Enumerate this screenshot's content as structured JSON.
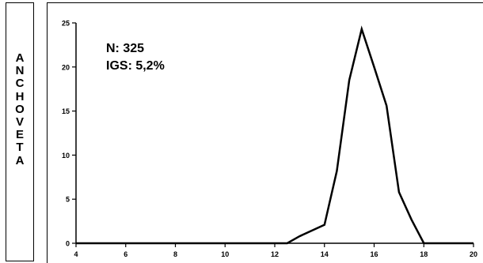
{
  "side_label": {
    "letters": [
      "A",
      "N",
      "C",
      "H",
      "O",
      "V",
      "E",
      "T",
      "A"
    ]
  },
  "annotations": {
    "n": "N: 325",
    "igs": "IGS: 5,2%"
  },
  "chart_data": {
    "type": "line",
    "title": "",
    "xlabel": "",
    "ylabel": "",
    "xlim": [
      4,
      20
    ],
    "ylim": [
      0,
      25
    ],
    "xticks": [
      4,
      6,
      8,
      10,
      12,
      14,
      16,
      18,
      20
    ],
    "yticks": [
      0,
      5,
      10,
      15,
      20,
      25
    ],
    "grid": false,
    "series": [
      {
        "color": "#000000",
        "x": [
          4,
          12.5,
          13,
          14,
          14.5,
          15,
          15.5,
          16,
          16.5,
          17,
          17.5,
          18,
          20
        ],
        "y": [
          0,
          0,
          0.8,
          2.1,
          8.2,
          18.5,
          24.3,
          20.0,
          15.6,
          5.8,
          2.7,
          0,
          0
        ]
      }
    ]
  }
}
